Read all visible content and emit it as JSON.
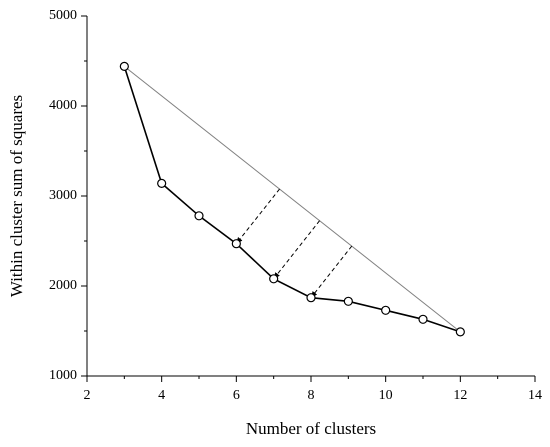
{
  "chart_data": {
    "type": "line",
    "x_label": "Number of clusters",
    "y_label": "Within cluster sum of squares",
    "x": [
      3,
      4,
      5,
      6,
      7,
      8,
      9,
      10,
      11,
      12
    ],
    "series": [
      {
        "name": null,
        "color": "#000000",
        "values": [
          4440,
          3140,
          2780,
          2470,
          2080,
          1870,
          1830,
          1730,
          1630,
          1490
        ]
      }
    ],
    "xlim": [
      2,
      14
    ],
    "xticks": [
      2,
      4,
      6,
      8,
      10,
      12,
      14
    ],
    "ylim": [
      1000,
      5000
    ],
    "yticks": [
      1000,
      2000,
      3000,
      4000,
      5000
    ],
    "reference_line_color": "#808080",
    "distance_markers_at": [
      6,
      7,
      8
    ]
  }
}
